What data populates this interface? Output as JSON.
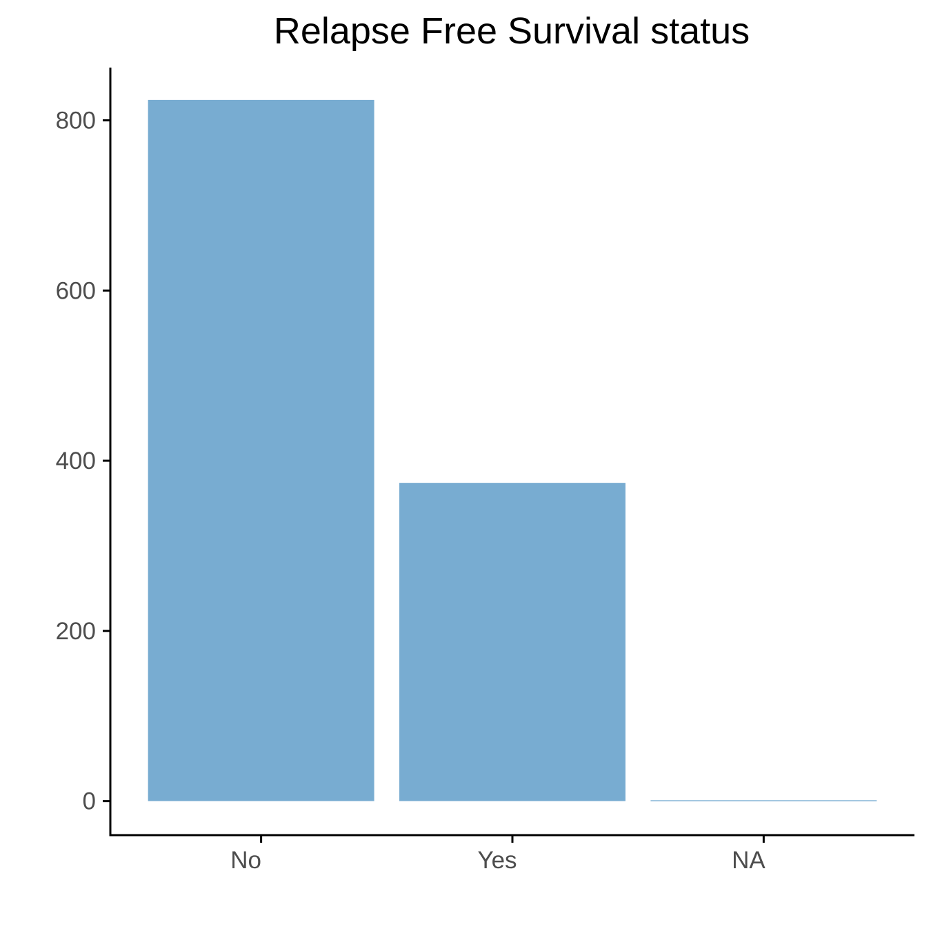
{
  "chart_data": {
    "type": "bar",
    "title": "Relapse Free Survival status",
    "xlabel": "",
    "ylabel": "",
    "categories": [
      "No",
      "Yes",
      "NA"
    ],
    "values": [
      824,
      374,
      1
    ],
    "ylim": [
      -40,
      862
    ],
    "yticks": [
      0,
      200,
      400,
      600,
      800
    ],
    "yticklabels": [
      "0",
      "200",
      "400",
      "600",
      "800"
    ],
    "grid": false,
    "legend": "none",
    "bar_color": "#78acd1"
  }
}
